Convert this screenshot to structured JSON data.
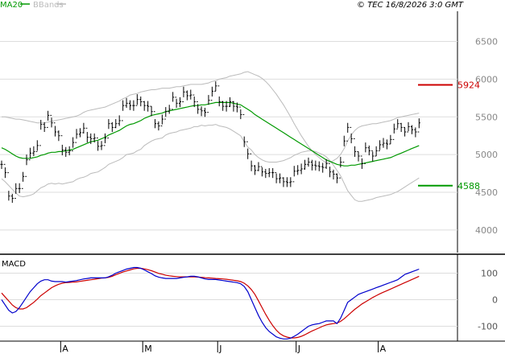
{
  "header": {
    "legend_ma": "MA20",
    "legend_bbands": "BBands",
    "copyright": "© TEC 16/8/2026 3:0 GMT"
  },
  "colors": {
    "ma": "#009900",
    "bbands": "#bbbbbb",
    "candle": "#000000",
    "macd": "#0000cc",
    "signal": "#cc0000",
    "resistance": "#cc0000",
    "support": "#009900",
    "grid": "#dddddd"
  },
  "chart_data": [
    {
      "type": "candlestick",
      "title": "",
      "yticks": [
        4000,
        4500,
        5000,
        5500,
        6000,
        6500
      ],
      "ylim": [
        3700,
        6900
      ],
      "x_month_labels": [
        {
          "label": "A",
          "index": 17
        },
        {
          "label": "M",
          "index": 40
        },
        {
          "label": "J",
          "index": 61
        },
        {
          "label": "J",
          "index": 83
        },
        {
          "label": "A",
          "index": 106
        }
      ],
      "n_bars": 118,
      "close": [
        4870,
        4760,
        4450,
        4420,
        4550,
        4550,
        4710,
        4930,
        5020,
        5040,
        5120,
        5400,
        5360,
        5520,
        5420,
        5300,
        5250,
        5060,
        5030,
        5050,
        5160,
        5270,
        5290,
        5350,
        5230,
        5210,
        5220,
        5110,
        5120,
        5220,
        5410,
        5360,
        5410,
        5450,
        5650,
        5680,
        5650,
        5650,
        5730,
        5700,
        5650,
        5640,
        5570,
        5410,
        5380,
        5470,
        5570,
        5600,
        5760,
        5680,
        5700,
        5830,
        5780,
        5790,
        5700,
        5600,
        5580,
        5560,
        5720,
        5840,
        5910,
        5700,
        5640,
        5640,
        5700,
        5640,
        5630,
        5530,
        5170,
        5010,
        4850,
        4790,
        4840,
        4770,
        4750,
        4760,
        4760,
        4680,
        4690,
        4640,
        4630,
        4640,
        4780,
        4790,
        4810,
        4870,
        4900,
        4860,
        4850,
        4840,
        4830,
        4880,
        4770,
        4740,
        4690,
        4900,
        5180,
        5360,
        5210,
        5040,
        4980,
        4880,
        5090,
        5050,
        4980,
        5050,
        5130,
        5150,
        5140,
        5200,
        5340,
        5410,
        5360,
        5300,
        5370,
        5330,
        5300,
        5420
      ],
      "high": [
        4920,
        4830,
        4520,
        4480,
        4620,
        4620,
        4770,
        5000,
        5090,
        5110,
        5190,
        5460,
        5430,
        5580,
        5490,
        5380,
        5320,
        5130,
        5100,
        5110,
        5230,
        5340,
        5350,
        5420,
        5300,
        5280,
        5280,
        5180,
        5180,
        5280,
        5470,
        5430,
        5470,
        5520,
        5720,
        5750,
        5720,
        5720,
        5800,
        5770,
        5710,
        5710,
        5640,
        5470,
        5440,
        5530,
        5630,
        5660,
        5830,
        5740,
        5760,
        5900,
        5850,
        5860,
        5770,
        5670,
        5640,
        5620,
        5790,
        5900,
        5970,
        5770,
        5710,
        5710,
        5760,
        5710,
        5690,
        5600,
        5240,
        5080,
        4920,
        4860,
        4900,
        4830,
        4810,
        4820,
        4820,
        4750,
        4750,
        4700,
        4700,
        4700,
        4850,
        4860,
        4880,
        4930,
        4960,
        4930,
        4920,
        4910,
        4890,
        4940,
        4840,
        4800,
        4750,
        4970,
        5250,
        5420,
        5280,
        5110,
        5040,
        4950,
        5160,
        5120,
        5040,
        5110,
        5190,
        5220,
        5200,
        5260,
        5410,
        5470,
        5420,
        5360,
        5430,
        5390,
        5360,
        5480
      ],
      "low": [
        4810,
        4690,
        4390,
        4360,
        4480,
        4490,
        4640,
        4860,
        4950,
        4980,
        5050,
        5330,
        5300,
        5450,
        5360,
        5240,
        5180,
        4990,
        4970,
        4990,
        5090,
        5210,
        5230,
        5280,
        5160,
        5140,
        5160,
        5050,
        5060,
        5150,
        5340,
        5300,
        5350,
        5380,
        5580,
        5620,
        5590,
        5580,
        5660,
        5640,
        5580,
        5570,
        5510,
        5350,
        5320,
        5400,
        5500,
        5540,
        5700,
        5620,
        5630,
        5760,
        5720,
        5730,
        5630,
        5540,
        5510,
        5500,
        5660,
        5770,
        5840,
        5640,
        5580,
        5570,
        5630,
        5570,
        5560,
        5470,
        5100,
        4940,
        4780,
        4730,
        4780,
        4710,
        4690,
        4700,
        4690,
        4620,
        4620,
        4570,
        4570,
        4570,
        4710,
        4730,
        4740,
        4800,
        4840,
        4790,
        4790,
        4780,
        4760,
        4810,
        4700,
        4670,
        4620,
        4830,
        5110,
        5290,
        5150,
        4970,
        4910,
        4810,
        5030,
        4990,
        4910,
        4980,
        5060,
        5090,
        5070,
        5140,
        5280,
        5350,
        5300,
        5240,
        5310,
        5270,
        5230,
        5350
      ],
      "ma20": [
        5090,
        5070,
        5040,
        5010,
        4980,
        4960,
        4950,
        4950,
        4950,
        4960,
        4970,
        4990,
        5000,
        5020,
        5030,
        5030,
        5040,
        5040,
        5050,
        5060,
        5070,
        5090,
        5110,
        5130,
        5150,
        5170,
        5180,
        5190,
        5210,
        5230,
        5260,
        5280,
        5300,
        5320,
        5350,
        5380,
        5400,
        5410,
        5430,
        5450,
        5480,
        5500,
        5520,
        5530,
        5540,
        5550,
        5570,
        5580,
        5590,
        5600,
        5610,
        5620,
        5630,
        5640,
        5650,
        5650,
        5660,
        5660,
        5670,
        5680,
        5690,
        5690,
        5690,
        5690,
        5690,
        5680,
        5670,
        5660,
        5630,
        5600,
        5570,
        5530,
        5500,
        5470,
        5440,
        5410,
        5380,
        5350,
        5320,
        5290,
        5260,
        5230,
        5200,
        5170,
        5140,
        5110,
        5080,
        5050,
        5020,
        4990,
        4960,
        4930,
        4910,
        4890,
        4870,
        4860,
        4850,
        4850,
        4860,
        4860,
        4870,
        4880,
        4890,
        4900,
        4910,
        4920,
        4930,
        4940,
        4950,
        4960,
        4980,
        5000,
        5020,
        5040,
        5060,
        5080,
        5100,
        5120
      ],
      "bb_upper": [
        5500,
        5500,
        5490,
        5480,
        5470,
        5470,
        5460,
        5450,
        5440,
        5430,
        5420,
        5420,
        5420,
        5430,
        5440,
        5450,
        5460,
        5470,
        5480,
        5490,
        5500,
        5510,
        5530,
        5560,
        5580,
        5590,
        5600,
        5610,
        5620,
        5630,
        5650,
        5670,
        5690,
        5710,
        5740,
        5760,
        5790,
        5800,
        5810,
        5830,
        5840,
        5850,
        5860,
        5860,
        5870,
        5880,
        5880,
        5880,
        5890,
        5900,
        5900,
        5910,
        5920,
        5930,
        5930,
        5930,
        5930,
        5940,
        5950,
        5970,
        5980,
        6000,
        6010,
        6020,
        6040,
        6050,
        6060,
        6070,
        6090,
        6100,
        6080,
        6060,
        6040,
        6010,
        5970,
        5920,
        5860,
        5800,
        5730,
        5660,
        5580,
        5500,
        5410,
        5330,
        5250,
        5180,
        5110,
        5050,
        5000,
        4960,
        4920,
        4890,
        4900,
        4920,
        4950,
        5000,
        5080,
        5180,
        5260,
        5320,
        5360,
        5380,
        5390,
        5400,
        5410,
        5410,
        5420,
        5430,
        5440,
        5450,
        5470,
        5490,
        5500,
        5510,
        5520,
        5530,
        5540,
        5550
      ],
      "bb_lower": [
        4680,
        4640,
        4590,
        4540,
        4490,
        4450,
        4440,
        4450,
        4460,
        4480,
        4520,
        4560,
        4580,
        4610,
        4620,
        4610,
        4620,
        4610,
        4620,
        4630,
        4640,
        4670,
        4690,
        4700,
        4720,
        4750,
        4760,
        4770,
        4800,
        4830,
        4870,
        4890,
        4910,
        4930,
        4960,
        5000,
        5010,
        5020,
        5050,
        5070,
        5120,
        5150,
        5180,
        5200,
        5210,
        5220,
        5260,
        5280,
        5290,
        5300,
        5320,
        5330,
        5340,
        5350,
        5370,
        5370,
        5390,
        5380,
        5390,
        5390,
        5400,
        5380,
        5370,
        5360,
        5340,
        5310,
        5280,
        5250,
        5170,
        5100,
        5060,
        5000,
        4960,
        4930,
        4910,
        4900,
        4900,
        4900,
        4910,
        4920,
        4940,
        4960,
        4990,
        5010,
        5030,
        5040,
        5050,
        5050,
        5040,
        5020,
        5000,
        4970,
        4920,
        4860,
        4790,
        4720,
        4620,
        4520,
        4460,
        4400,
        4380,
        4380,
        4390,
        4400,
        4410,
        4430,
        4440,
        4450,
        4460,
        4470,
        4490,
        4510,
        4540,
        4570,
        4600,
        4630,
        4660,
        4690
      ]
    },
    {
      "type": "line",
      "title": "MACD",
      "yticks": [
        -100,
        0,
        100
      ],
      "ylim": [
        -150,
        165
      ],
      "macd": [
        0,
        -20,
        -40,
        -50,
        -45,
        -30,
        -10,
        10,
        30,
        45,
        60,
        70,
        75,
        75,
        70,
        68,
        68,
        68,
        66,
        68,
        70,
        72,
        75,
        78,
        80,
        82,
        82,
        82,
        82,
        82,
        86,
        92,
        100,
        105,
        110,
        115,
        118,
        121,
        121,
        118,
        112,
        105,
        98,
        90,
        85,
        82,
        80,
        80,
        80,
        80,
        82,
        84,
        86,
        88,
        88,
        86,
        82,
        78,
        76,
        76,
        76,
        74,
        72,
        70,
        68,
        66,
        64,
        60,
        50,
        30,
        0,
        -30,
        -60,
        -85,
        -105,
        -120,
        -130,
        -140,
        -145,
        -148,
        -148,
        -145,
        -138,
        -130,
        -120,
        -110,
        -100,
        -95,
        -92,
        -90,
        -85,
        -80,
        -80,
        -80,
        -90,
        -70,
        -40,
        -10,
        0,
        10,
        20,
        25,
        30,
        35,
        40,
        45,
        50,
        55,
        60,
        65,
        70,
        75,
        85,
        95,
        100,
        105,
        110,
        115
      ],
      "signal": [
        25,
        10,
        -5,
        -20,
        -30,
        -35,
        -35,
        -30,
        -20,
        -10,
        2,
        15,
        25,
        35,
        45,
        52,
        58,
        62,
        64,
        65,
        66,
        67,
        69,
        71,
        73,
        75,
        77,
        79,
        81,
        82,
        84,
        88,
        94,
        99,
        104,
        108,
        112,
        116,
        118,
        118,
        116,
        113,
        109,
        104,
        99,
        96,
        92,
        90,
        88,
        87,
        86,
        86,
        86,
        86,
        86,
        85,
        84,
        83,
        82,
        81,
        80,
        79,
        78,
        77,
        75,
        73,
        71,
        68,
        62,
        52,
        38,
        20,
        -5,
        -30,
        -55,
        -78,
        -98,
        -115,
        -128,
        -136,
        -141,
        -144,
        -144,
        -142,
        -138,
        -132,
        -125,
        -118,
        -112,
        -106,
        -100,
        -95,
        -92,
        -90,
        -88,
        -82,
        -72,
        -60,
        -48,
        -36,
        -26,
        -16,
        -8,
        0,
        8,
        15,
        22,
        28,
        34,
        40,
        46,
        52,
        58,
        64,
        70,
        76,
        82,
        88
      ]
    },
    {
      "type": "annotation",
      "levels": [
        {
          "label": "5924",
          "value": 5924
        },
        {
          "label": "4588",
          "value": 4588
        }
      ]
    }
  ]
}
